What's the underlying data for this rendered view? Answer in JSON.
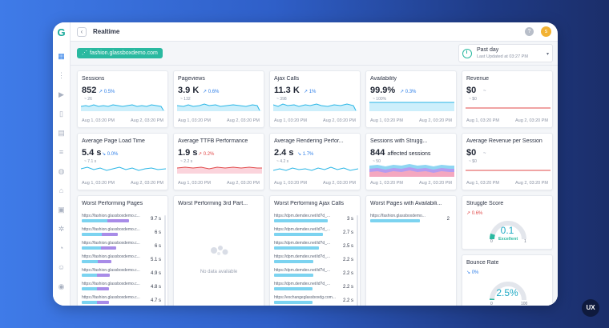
{
  "topbar": {
    "title": "Realtime",
    "back_icon": "chevron-left-icon",
    "help_icon": "?",
    "avatar": "s"
  },
  "site": {
    "label": "fashion.glassboxdemo.com"
  },
  "period": {
    "label": "Past day",
    "sub": "Last Updated at 03:27 PM",
    "caret": "▾"
  },
  "axis": {
    "start": "Aug 1, 03:20 PM",
    "end": "Aug 2, 03:20 PM"
  },
  "cards": {
    "sessions": {
      "title": "Sessions",
      "value": "852",
      "trend": "0.5%",
      "baseline": "~ 26"
    },
    "pageviews": {
      "title": "Pageviews",
      "value": "3.9 K",
      "trend": "0.6%",
      "baseline": "~ 132"
    },
    "ajax": {
      "title": "Ajax Calls",
      "value": "11.3 K",
      "trend": "1%",
      "baseline": "~ 398"
    },
    "availability": {
      "title": "Availability",
      "value": "99.9%",
      "trend": "0.3%",
      "baseline": "~ 100%"
    },
    "revenue": {
      "title": "Revenue",
      "value": "$0",
      "trend": "~",
      "baseline": "~ $0"
    },
    "load_time": {
      "title": "Average Page Load Time",
      "value": "5.4 s",
      "trend": "0.0%",
      "baseline": "~ 7.1 s"
    },
    "ttfb": {
      "title": "Average TTFB Performance",
      "value": "1.9 s",
      "trend": "0.2%",
      "baseline": "~ 2.2 s"
    },
    "rendering": {
      "title": "Average Rendering Perfor...",
      "value": "2.4 s",
      "trend": "1.7%",
      "baseline": "~ 4.2 s"
    },
    "struggle_sessions": {
      "title": "Sessions with Strugg...",
      "value": "844",
      "value_suffix": "affected sessions",
      "baseline": "~ 50"
    },
    "avg_revenue": {
      "title": "Average Revenue per Session",
      "value": "$0",
      "trend": "~",
      "baseline": "~ $0"
    }
  },
  "worst_pages": {
    "title": "Worst Performing Pages",
    "rows": [
      {
        "url": "https://fashion.glassboxdemo.c...",
        "value": "9.7 s",
        "fill": 0.72
      },
      {
        "url": "https://fashion.glassboxdemo.c...",
        "value": "6 s",
        "fill": 0.55
      },
      {
        "url": "https://fashion.glassboxdemo.c...",
        "value": "6 s",
        "fill": 0.52
      },
      {
        "url": "https://fashion.glassboxdemo.c...",
        "value": "5.1 s",
        "fill": 0.45
      },
      {
        "url": "https://fashion.glassboxdemo.c...",
        "value": "4.9 s",
        "fill": 0.43
      },
      {
        "url": "https://fashion.glassboxdemo.c...",
        "value": "4.8 s",
        "fill": 0.42
      },
      {
        "url": "https://fashion.glassboxdemo.c...",
        "value": "4.7 s",
        "fill": 0.41
      }
    ]
  },
  "third_party": {
    "title": "Worst Performing 3rd Part...",
    "empty": "No data available"
  },
  "worst_ajax": {
    "title": "Worst Performing Ajax Calls",
    "rows": [
      {
        "url": "https://dpm.demdex.net/id?d_...",
        "value": "3 s",
        "fill": 0.82
      },
      {
        "url": "https://dpm.demdex.net/id?d_...",
        "value": "2.7 s",
        "fill": 0.74
      },
      {
        "url": "https://dpm.demdex.net/id?d_...",
        "value": "2.5 s",
        "fill": 0.68
      },
      {
        "url": "https://dpm.demdex.net/id?d_...",
        "value": "2.2 s",
        "fill": 0.6
      },
      {
        "url": "https://dpm.demdex.net/id?d_...",
        "value": "2.2 s",
        "fill": 0.6
      },
      {
        "url": "https://dpm.demdex.net/id?d_...",
        "value": "2.2 s",
        "fill": 0.59
      },
      {
        "url": "https://exchangeglassboxdg.com...",
        "value": "2.2 s",
        "fill": 0.58
      }
    ]
  },
  "worst_availability": {
    "title": "Worst Pages with Availabili...",
    "rows": [
      {
        "url": "https://fashion.glassboxdemo...",
        "value": "2",
        "fill": 0.75
      }
    ]
  },
  "struggle_score": {
    "title": "Struggle Score",
    "trend": "0.6%",
    "value": "0.1",
    "label": "Excellent",
    "min": "0",
    "max": "1",
    "level": 0.1
  },
  "bounce_rate": {
    "title": "Bounce Rate",
    "trend": "0%",
    "value": "2.5%",
    "min": "0",
    "max": "100",
    "level": 0.025
  },
  "badge": "UX",
  "colors": {
    "accent": "#2ab9a0",
    "spark_blue": "#29b6e6",
    "spark_red": "#e14a4a",
    "bar_blue": "#7cd3f0",
    "bar_purple": "#a88ce8"
  }
}
